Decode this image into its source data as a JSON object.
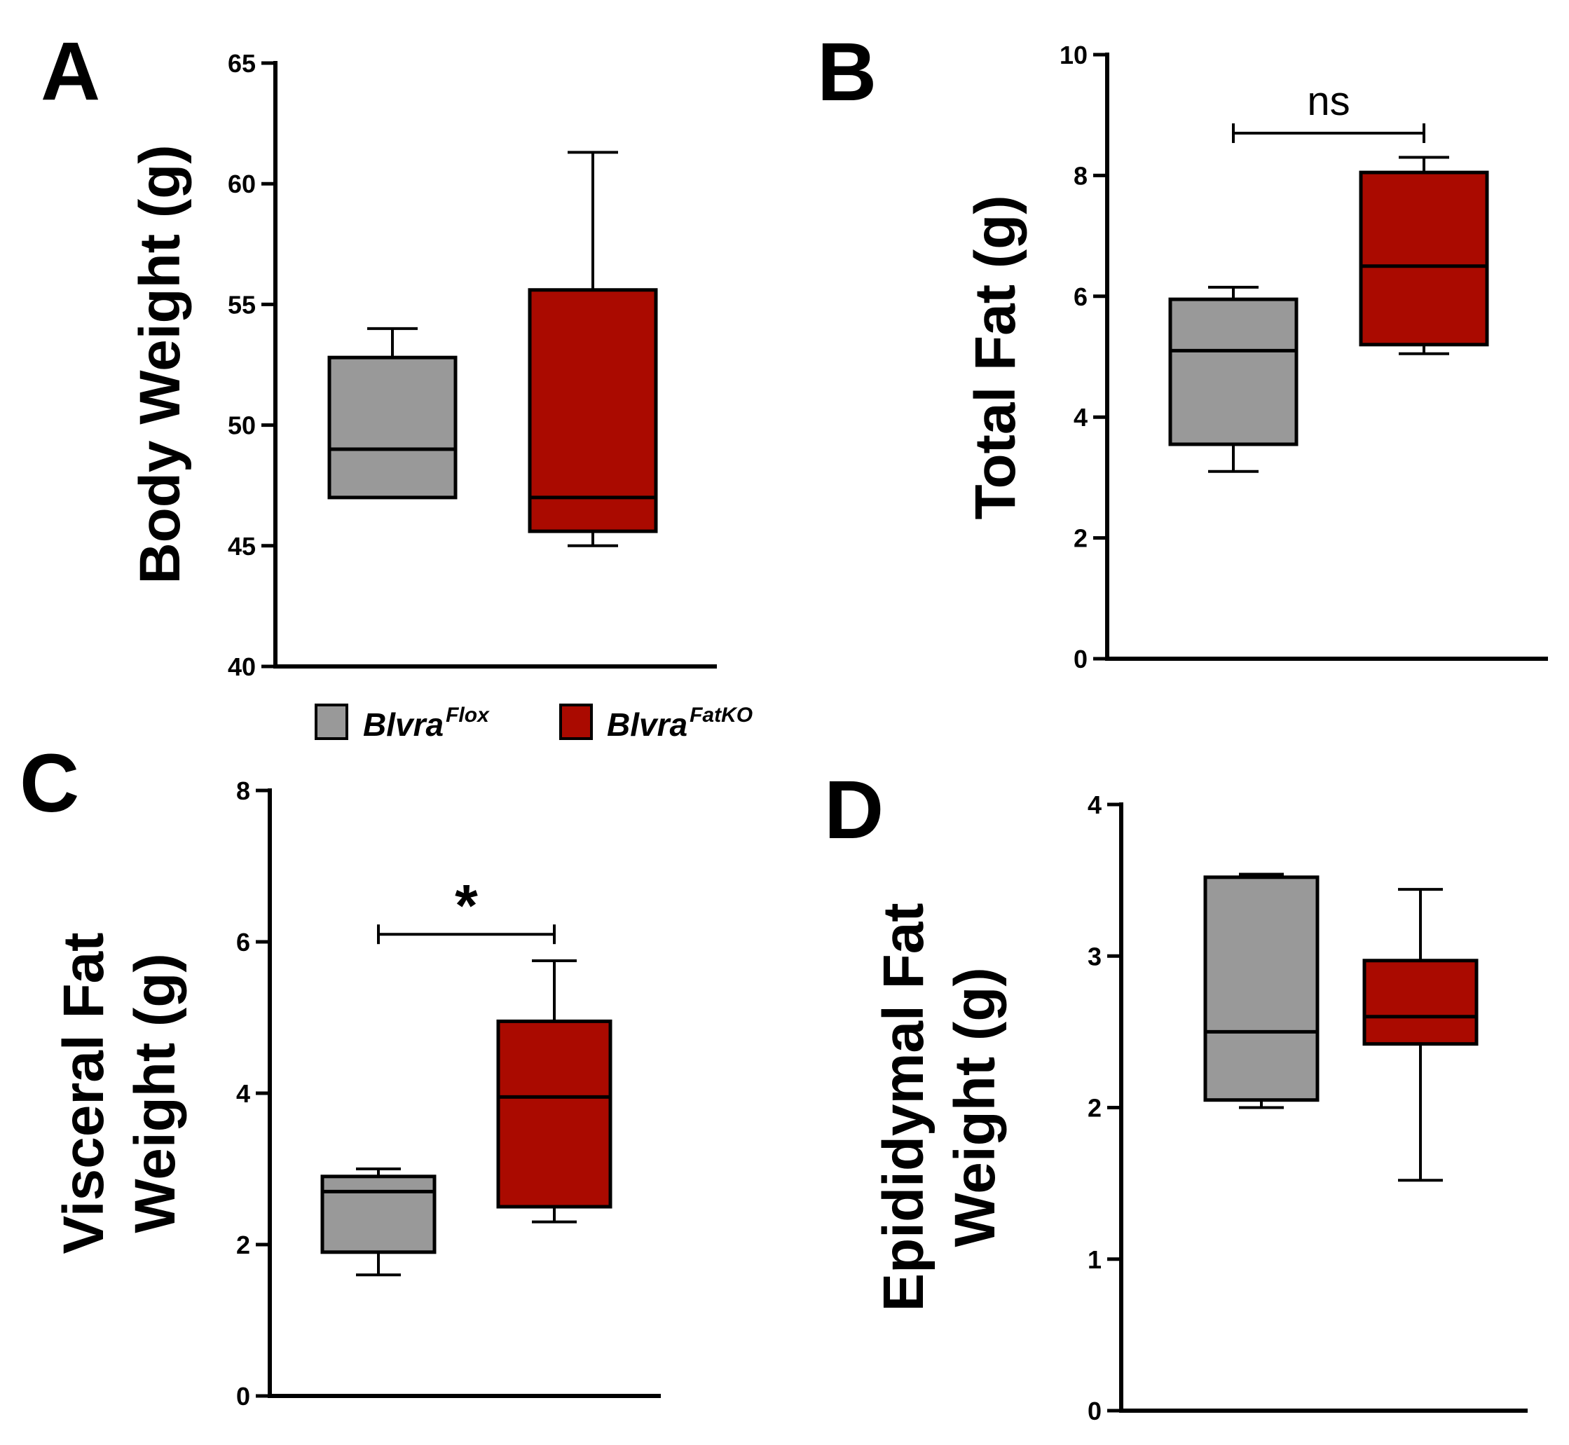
{
  "legend": {
    "items": [
      {
        "gene": "Blvra",
        "superscript": "Flox",
        "color": "#999999"
      },
      {
        "gene": "Blvra",
        "superscript": "FatKO",
        "color": "#aa0a00"
      }
    ]
  },
  "colors": {
    "flox": "#999999",
    "fatko": "#aa0a00",
    "axis": "#000000"
  },
  "chart_data": [
    {
      "panel": "A",
      "type": "boxplot",
      "ylabel_lines": [
        "Body Weight (g)"
      ],
      "ylim": [
        40,
        65
      ],
      "yticks": [
        40,
        45,
        50,
        55,
        60,
        65
      ],
      "series": [
        {
          "name": "Blvra Flox",
          "min": 47,
          "q1": 47,
          "median": 49,
          "q3": 52.8,
          "max": 54
        },
        {
          "name": "Blvra FatKO",
          "min": 45,
          "q1": 45.6,
          "median": 47,
          "q3": 55.6,
          "max": 61.3
        }
      ],
      "significance": null
    },
    {
      "panel": "B",
      "type": "boxplot",
      "ylabel_lines": [
        "Total Fat (g)"
      ],
      "ylim": [
        0,
        10
      ],
      "yticks": [
        0,
        2,
        4,
        6,
        8,
        10
      ],
      "series": [
        {
          "name": "Blvra Flox",
          "min": 3.1,
          "q1": 3.55,
          "median": 5.1,
          "q3": 5.95,
          "max": 6.15
        },
        {
          "name": "Blvra FatKO",
          "min": 5.05,
          "q1": 5.2,
          "median": 6.5,
          "q3": 8.05,
          "max": 8.3
        }
      ],
      "significance": {
        "label": "ns",
        "level": 8.7
      }
    },
    {
      "panel": "C",
      "type": "boxplot",
      "ylabel_lines": [
        "Visceral Fat",
        "Weight (g)"
      ],
      "ylim": [
        0,
        8
      ],
      "yticks": [
        0,
        2,
        4,
        6,
        8
      ],
      "series": [
        {
          "name": "Blvra Flox",
          "min": 1.6,
          "q1": 1.9,
          "median": 2.7,
          "q3": 2.9,
          "max": 3.0
        },
        {
          "name": "Blvra FatKO",
          "min": 2.3,
          "q1": 2.5,
          "median": 3.95,
          "q3": 4.95,
          "max": 5.75
        }
      ],
      "significance": {
        "label": "*",
        "level": 6.1
      }
    },
    {
      "panel": "D",
      "type": "boxplot",
      "ylabel_lines": [
        "Epididymal Fat",
        "Weight (g)"
      ],
      "ylim": [
        0,
        4
      ],
      "yticks": [
        0,
        1,
        2,
        3,
        4
      ],
      "series": [
        {
          "name": "Blvra Flox",
          "min": 2.0,
          "q1": 2.05,
          "median": 2.5,
          "q3": 3.52,
          "max": 3.54
        },
        {
          "name": "Blvra FatKO",
          "min": 1.52,
          "q1": 2.42,
          "median": 2.6,
          "q3": 2.97,
          "max": 3.44
        }
      ],
      "significance": null
    }
  ]
}
